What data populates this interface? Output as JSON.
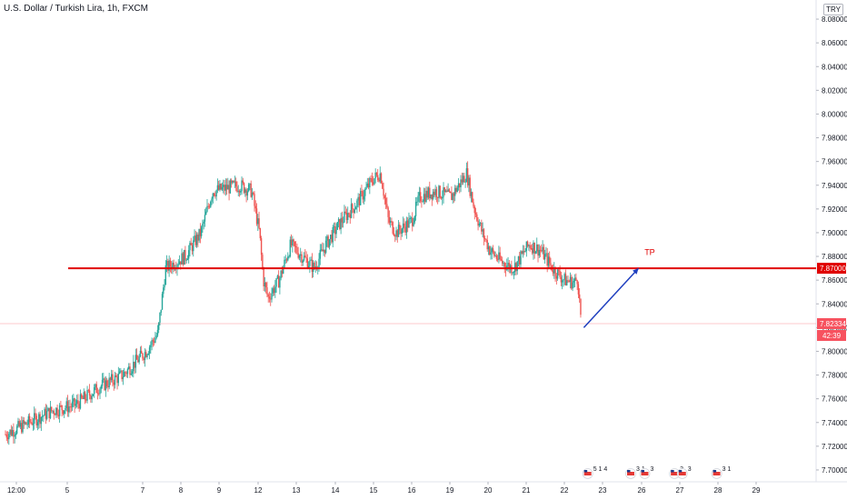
{
  "header": {
    "title": "U.S. Dollar / Turkish Lira, 1h, FXCM",
    "currency": "TRY"
  },
  "chart_data": {
    "type": "candlestick",
    "title": "U.S. Dollar / Turkish Lira, 1h, FXCM",
    "ylim": [
      7.69,
      8.09
    ],
    "y_ticks": [
      "8.08000",
      "8.06000",
      "8.04000",
      "8.02000",
      "8.00000",
      "7.98000",
      "7.96000",
      "7.94000",
      "7.92000",
      "7.90000",
      "7.88000",
      "7.86000",
      "7.84000",
      "7.82000",
      "7.80000",
      "7.78000",
      "7.76000",
      "7.74000",
      "7.72000",
      "7.70000"
    ],
    "x_ticks": [
      "12:00",
      "5",
      "7",
      "8",
      "9",
      "12",
      "13",
      "14",
      "15",
      "16",
      "19",
      "20",
      "21",
      "22",
      "23",
      "26",
      "27",
      "28",
      "29"
    ],
    "grid": false,
    "colors": {
      "up": "#26a69a",
      "down": "#ef5350"
    },
    "trend_path": [
      [
        0,
        7.73
      ],
      [
        3,
        7.74
      ],
      [
        6,
        7.75
      ],
      [
        9,
        7.755
      ],
      [
        12,
        7.77
      ],
      [
        15,
        7.78
      ],
      [
        18,
        7.8
      ],
      [
        19.5,
        7.815
      ],
      [
        20.5,
        7.87
      ],
      [
        23,
        7.88
      ],
      [
        25,
        7.9
      ],
      [
        26.5,
        7.935
      ],
      [
        30,
        7.94
      ],
      [
        31.5,
        7.935
      ],
      [
        32.5,
        7.9
      ],
      [
        33,
        7.86
      ],
      [
        33.6,
        7.845
      ],
      [
        35,
        7.86
      ],
      [
        36.5,
        7.89
      ],
      [
        38,
        7.88
      ],
      [
        39.5,
        7.87
      ],
      [
        41,
        7.89
      ],
      [
        43,
        7.91
      ],
      [
        45,
        7.925
      ],
      [
        47,
        7.945
      ],
      [
        48,
        7.95
      ],
      [
        49,
        7.91
      ],
      [
        50,
        7.9
      ],
      [
        52,
        7.91
      ],
      [
        53,
        7.93
      ],
      [
        55,
        7.935
      ],
      [
        57,
        7.93
      ],
      [
        59,
        7.95
      ],
      [
        60,
        7.92
      ],
      [
        61,
        7.9
      ],
      [
        62,
        7.885
      ],
      [
        63.5,
        7.875
      ],
      [
        65,
        7.87
      ],
      [
        67,
        7.89
      ],
      [
        68.5,
        7.885
      ],
      [
        70,
        7.87
      ],
      [
        71.5,
        7.86
      ],
      [
        72.8,
        7.858
      ],
      [
        73.2,
        7.862
      ],
      [
        73.6,
        7.83
      ]
    ],
    "levels": [
      {
        "price": 7.87,
        "label": "7.87000",
        "color": "#e00000"
      },
      {
        "price": 7.82334,
        "label": "7.82334",
        "color": "#f7525f",
        "countdown": "42:39"
      }
    ],
    "annotations": [
      {
        "text": "TP",
        "x": 82.0,
        "y": 7.878
      },
      {
        "arrow_from": [
          74.0,
          7.82
        ],
        "arrow_to": [
          81.0,
          7.87
        ]
      }
    ],
    "events": [
      {
        "x": 74.5,
        "text": "5 1 4"
      },
      {
        "x": 80.0,
        "text": "3 1"
      },
      {
        "x": 81.8,
        "text": "3"
      },
      {
        "x": 85.6,
        "text": "3"
      },
      {
        "x": 86.6,
        "text": "3"
      },
      {
        "x": 91.0,
        "text": "3 1"
      }
    ]
  }
}
